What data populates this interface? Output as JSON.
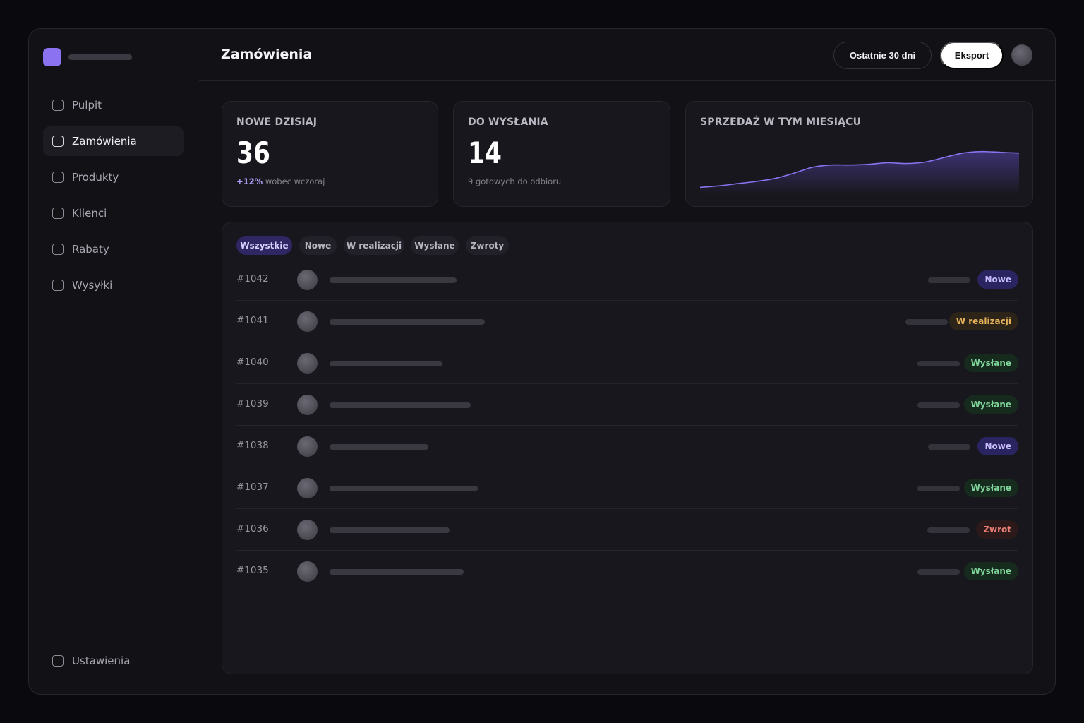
{
  "sidebar": {
    "items": [
      {
        "label": "Pulpit",
        "icon": "square-icon",
        "active": false
      },
      {
        "label": "Zamówienia",
        "icon": "square-icon",
        "active": true
      },
      {
        "label": "Produkty",
        "icon": "square-icon",
        "active": false
      },
      {
        "label": "Klienci",
        "icon": "square-icon",
        "active": false
      },
      {
        "label": "Rabaty",
        "icon": "square-icon",
        "active": false
      },
      {
        "label": "Wysyłki",
        "icon": "square-icon",
        "active": false
      }
    ],
    "settings_label": "Ustawienia"
  },
  "header": {
    "title": "Zamówienia",
    "range_label": "Ostatnie 30 dni",
    "export_label": "Eksport"
  },
  "stats": {
    "new_today": {
      "label": "NOWE DZISIAJ",
      "value": "36",
      "delta": "+12%",
      "delta_text": " wobec wczoraj"
    },
    "to_ship": {
      "label": "DO WYSŁANIA",
      "value": "14",
      "sub": "9 gotowych do odbioru"
    },
    "sales": {
      "label": "SPRZEDAŻ W TYM MIESIĄCU"
    }
  },
  "chart_data": {
    "type": "area",
    "title": "SPRZEDAŻ W TYM MIESIĄCU",
    "values": [
      10,
      12,
      15,
      18,
      22,
      29,
      37,
      40,
      40,
      41,
      43,
      42,
      44,
      50,
      56,
      58,
      57,
      56
    ],
    "ylim": [
      0,
      70
    ],
    "grid": false,
    "line_color": "#8b72f0"
  },
  "filters": [
    "Wszystkie",
    "Nowe",
    "W realizacji",
    "Wysłane",
    "Zwroty"
  ],
  "orders": [
    {
      "id": "#1042",
      "status": "Nowe",
      "kind": "new"
    },
    {
      "id": "#1041",
      "status": "W realizacji",
      "kind": "progress"
    },
    {
      "id": "#1040",
      "status": "Wysłane",
      "kind": "shipped"
    },
    {
      "id": "#1039",
      "status": "Wysłane",
      "kind": "shipped"
    },
    {
      "id": "#1038",
      "status": "Nowe",
      "kind": "new"
    },
    {
      "id": "#1037",
      "status": "Wysłane",
      "kind": "shipped"
    },
    {
      "id": "#1036",
      "status": "Zwrot",
      "kind": "return"
    },
    {
      "id": "#1035",
      "status": "Wysłane",
      "kind": "shipped"
    }
  ],
  "colors": {
    "accent": "#8b72f0",
    "status_new": "#c9beff",
    "status_progress": "#e6b35a",
    "status_shipped": "#7fd59b",
    "status_return": "#e87d74"
  }
}
